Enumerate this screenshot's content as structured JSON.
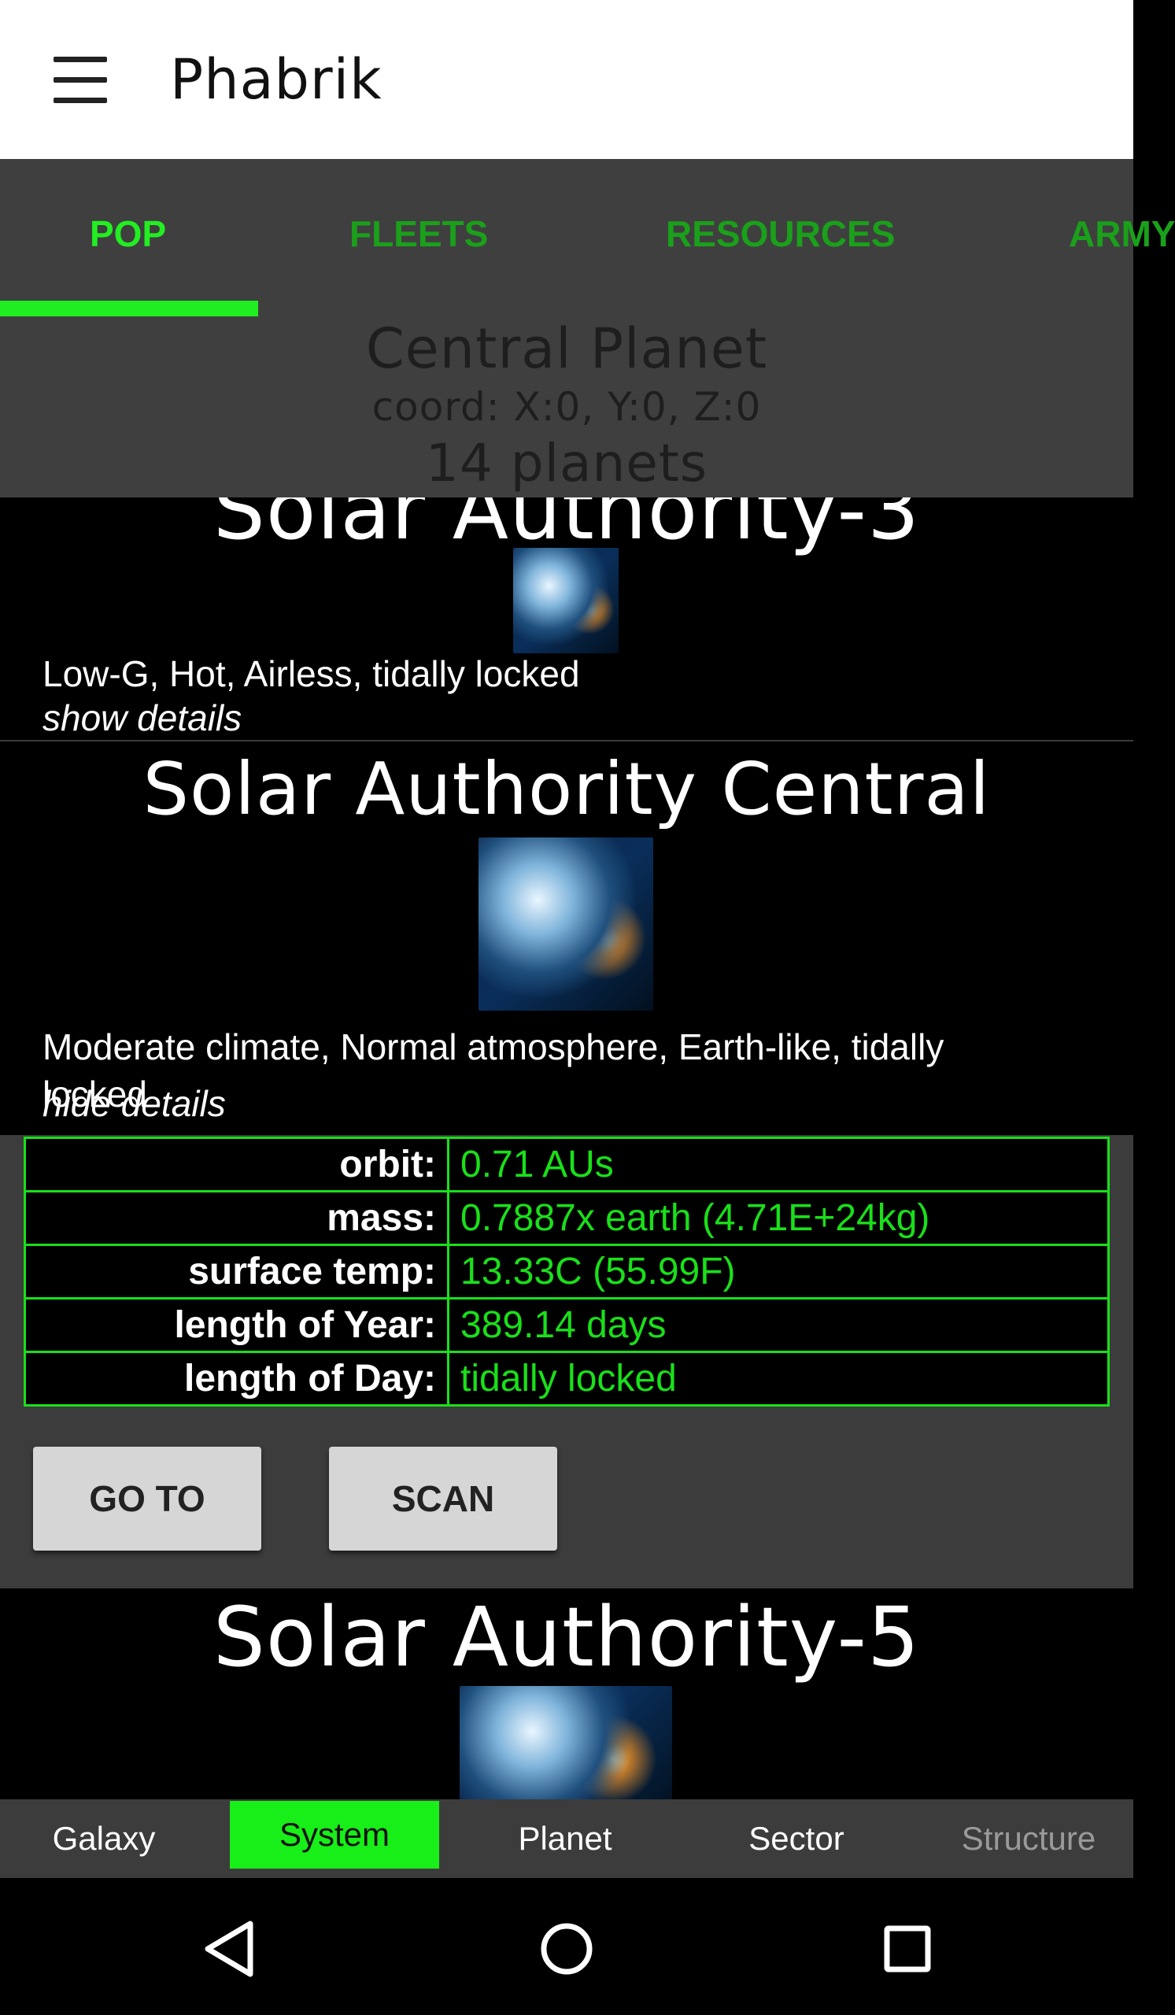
{
  "app": {
    "title": "Phabrik"
  },
  "tabs": [
    {
      "label": "POP",
      "active": true
    },
    {
      "label": "FLEETS",
      "active": false
    },
    {
      "label": "RESOURCES",
      "active": false
    },
    {
      "label": "ARMY",
      "active": false
    }
  ],
  "system": {
    "name": "Central Planet",
    "coord": "coord: X:0, Y:0, Z:0",
    "planet_count": "14 planets"
  },
  "planets": {
    "p3": {
      "name": "Solar Authority-3",
      "description": "Low-G, Hot, Airless, tidally locked",
      "toggle": "show details"
    },
    "central": {
      "name": "Solar Authority Central",
      "description": "Moderate climate, Normal atmosphere, Earth-like, tidally locked",
      "toggle": "hide details",
      "details": [
        {
          "label": "orbit:",
          "value": "0.71 AUs"
        },
        {
          "label": "mass:",
          "value": "0.7887x earth (4.71E+24kg)"
        },
        {
          "label": "surface temp:",
          "value": "13.33C (55.99F)"
        },
        {
          "label": "length of Year:",
          "value": "389.14 days"
        },
        {
          "label": "length of Day:",
          "value": "tidally locked"
        }
      ],
      "goto_label": "GO TO",
      "scan_label": "SCAN"
    },
    "p5": {
      "name": "Solar Authority-5"
    }
  },
  "bottom_nav": [
    {
      "label": "Galaxy",
      "state": "normal"
    },
    {
      "label": "System",
      "state": "active"
    },
    {
      "label": "Planet",
      "state": "normal"
    },
    {
      "label": "Sector",
      "state": "normal"
    },
    {
      "label": "Structure",
      "state": "disabled"
    }
  ],
  "colors": {
    "accent": "#20ee20",
    "tab_inactive": "#1aa01a",
    "panel": "#3f3f3f",
    "detail_border": "#19e019"
  },
  "icons": {
    "menu": "hamburger-menu-icon",
    "back": "back-triangle-icon",
    "home": "home-circle-icon",
    "recents": "recents-square-icon",
    "planet_image": "planet-spaceship-image"
  }
}
